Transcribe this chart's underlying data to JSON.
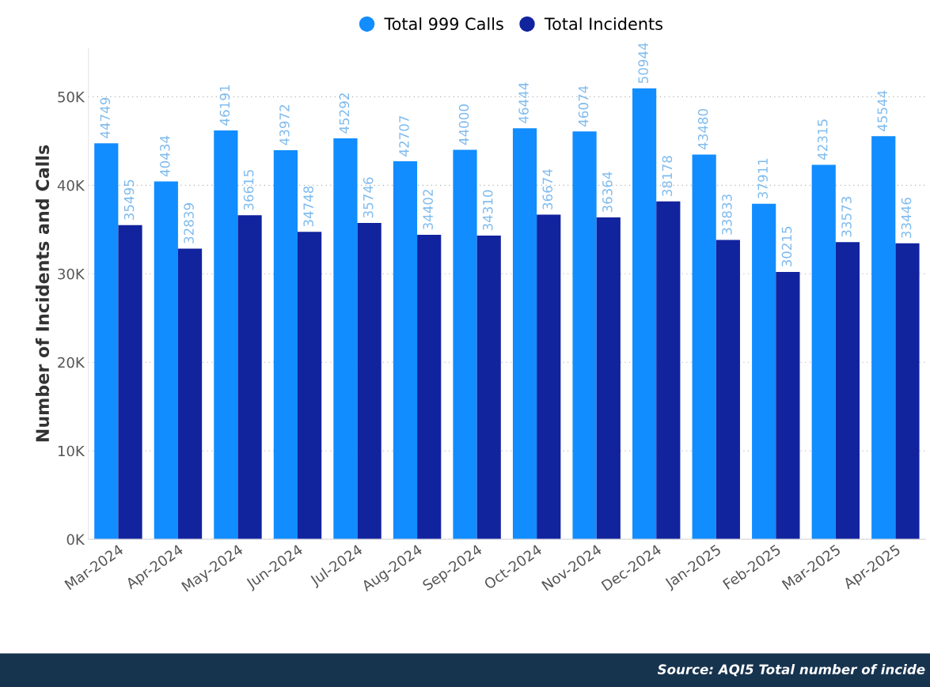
{
  "chart_data": {
    "type": "bar",
    "ylabel": "Number of Incidents and Calls",
    "categories": [
      "Mar-2024",
      "Apr-2024",
      "May-2024",
      "Jun-2024",
      "Jul-2024",
      "Aug-2024",
      "Sep-2024",
      "Oct-2024",
      "Nov-2024",
      "Dec-2024",
      "Jan-2025",
      "Feb-2025",
      "Mar-2025",
      "Apr-2025"
    ],
    "series": [
      {
        "name": "Total 999 Calls",
        "color": "#118dff",
        "values": [
          44749,
          40434,
          46191,
          43972,
          45292,
          42707,
          44000,
          46444,
          46074,
          50944,
          43480,
          37911,
          42315,
          45544
        ]
      },
      {
        "name": "Total Incidents",
        "color": "#12239e",
        "values": [
          35495,
          32839,
          36615,
          34748,
          35746,
          34402,
          34310,
          36674,
          36364,
          38178,
          33833,
          30215,
          33573,
          33446
        ]
      }
    ],
    "ylim": [
      0,
      55500
    ],
    "yticks": [
      {
        "value": 0,
        "label": "0K"
      },
      {
        "value": 10000,
        "label": "10K"
      },
      {
        "value": 20000,
        "label": "20K"
      },
      {
        "value": 30000,
        "label": "30K"
      },
      {
        "value": 40000,
        "label": "40K"
      },
      {
        "value": 50000,
        "label": "50K"
      }
    ],
    "grid": "y",
    "legend": "top",
    "data_labels": true,
    "annotations": [
      "Source: AQI5 Total number of incide"
    ]
  }
}
